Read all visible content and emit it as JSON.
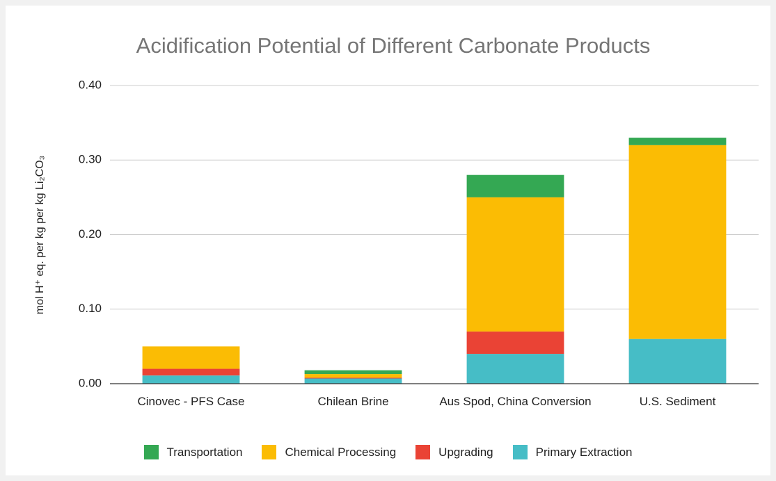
{
  "chart_data": {
    "type": "stacked_bar",
    "title": "Acidification Potential of Different Carbonate Products",
    "y_label": "mol H⁺ eq. per kg per kg Li₂CO₃",
    "categories": [
      "Cinovec - PFS Case",
      "Chilean Brine",
      "Aus Spod, China Conversion",
      "U.S. Sediment"
    ],
    "series": [
      {
        "name": "Transportation",
        "color": "#34a853",
        "values": [
          0,
          0.005,
          0.03,
          0.01
        ]
      },
      {
        "name": "Chemical Processing",
        "color": "#fbbc04",
        "values": [
          0.03,
          0.005,
          0.18,
          0.26
        ]
      },
      {
        "name": "Upgrading",
        "color": "#ea4335",
        "values": [
          0.009,
          0.001,
          0.03,
          0
        ]
      },
      {
        "name": "Primary Extraction",
        "color": "#46bdc6",
        "values": [
          0.011,
          0.007,
          0.04,
          0.06
        ]
      }
    ],
    "ylim": [
      0,
      0.4
    ],
    "yticks": [
      {
        "value": 0,
        "label": "0.00"
      },
      {
        "value": 0.1,
        "label": "0.10"
      },
      {
        "value": 0.2,
        "label": "0.20"
      },
      {
        "value": 0.3,
        "label": "0.30"
      },
      {
        "value": 0.4,
        "label": "0.40"
      }
    ],
    "grid": true,
    "legend": "bottom"
  }
}
